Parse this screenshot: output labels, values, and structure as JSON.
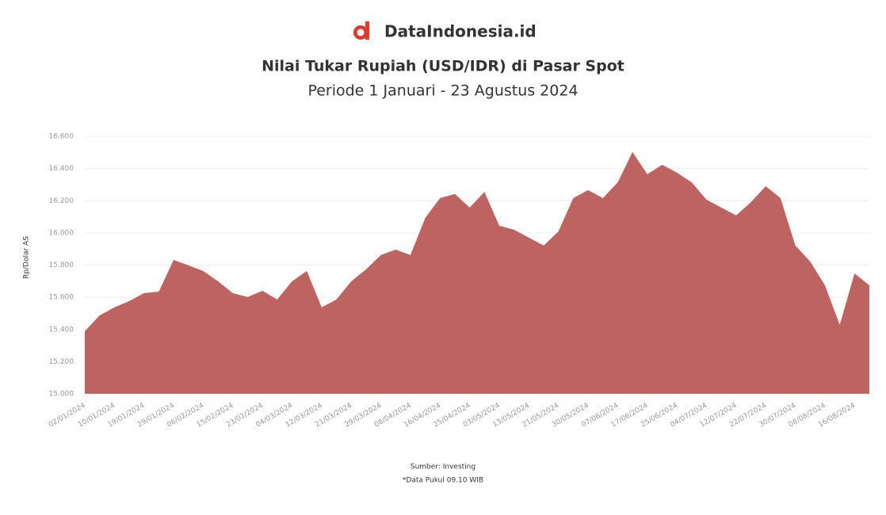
{
  "brand": "DataIndonesia.id",
  "chart_data": {
    "type": "area",
    "title": "Nilai Tukar Rupiah (USD/IDR) di Pasar Spot",
    "subtitle": "Periode 1 Januari - 23 Agustus 2024",
    "y_label": "Rp/Dolar AS",
    "source": "Sumber: Investing",
    "note": "*Data Pukul 09.10 WIB",
    "color": "#bd6361",
    "grid": true,
    "ylim": [
      15000,
      16600
    ],
    "yticks": [
      {
        "value": 15000,
        "label": "15.000"
      },
      {
        "value": 15200,
        "label": "15.200"
      },
      {
        "value": 15400,
        "label": "15.400"
      },
      {
        "value": 15600,
        "label": "15.600"
      },
      {
        "value": 15800,
        "label": "15.800"
      },
      {
        "value": 16000,
        "label": "16.000"
      },
      {
        "value": 16200,
        "label": "16.200"
      },
      {
        "value": 16400,
        "label": "16.400"
      },
      {
        "value": 16600,
        "label": "16.600"
      }
    ],
    "categories": [
      "02/01/2024",
      null,
      "10/01/2024",
      null,
      "19/01/2024",
      null,
      "29/01/2024",
      null,
      "06/02/2024",
      null,
      "15/02/2024",
      null,
      "23/02/2024",
      null,
      "04/03/2024",
      null,
      "12/03/2024",
      null,
      "21/03/2024",
      null,
      "29/03/2024",
      null,
      "08/04/2024",
      null,
      "16/04/2024",
      null,
      "25/04/2024",
      null,
      "03/05/2024",
      null,
      "13/05/2024",
      null,
      "21/05/2024",
      null,
      "30/05/2024",
      null,
      "07/06/2024",
      null,
      "17/06/2024",
      null,
      "25/06/2024",
      null,
      "04/07/2024",
      null,
      "12/07/2024",
      null,
      "22/07/2024",
      null,
      "30/07/2024",
      null,
      "08/08/2024",
      null,
      "16/08/2024",
      null
    ],
    "values": [
      15389,
      15487,
      15537,
      15576,
      15625,
      15635,
      15832,
      15798,
      15763,
      15699,
      15625,
      15601,
      15640,
      15586,
      15699,
      15763,
      15537,
      15586,
      15699,
      15773,
      15862,
      15896,
      15862,
      16093,
      16216,
      16241,
      16157,
      16255,
      16044,
      16019,
      15970,
      15921,
      16009,
      16216,
      16265,
      16216,
      16314,
      16502,
      16364,
      16423,
      16374,
      16314,
      16206,
      16157,
      16108,
      16191,
      16290,
      16216,
      15921,
      15822,
      15674,
      15428,
      15748,
      15674
    ]
  }
}
